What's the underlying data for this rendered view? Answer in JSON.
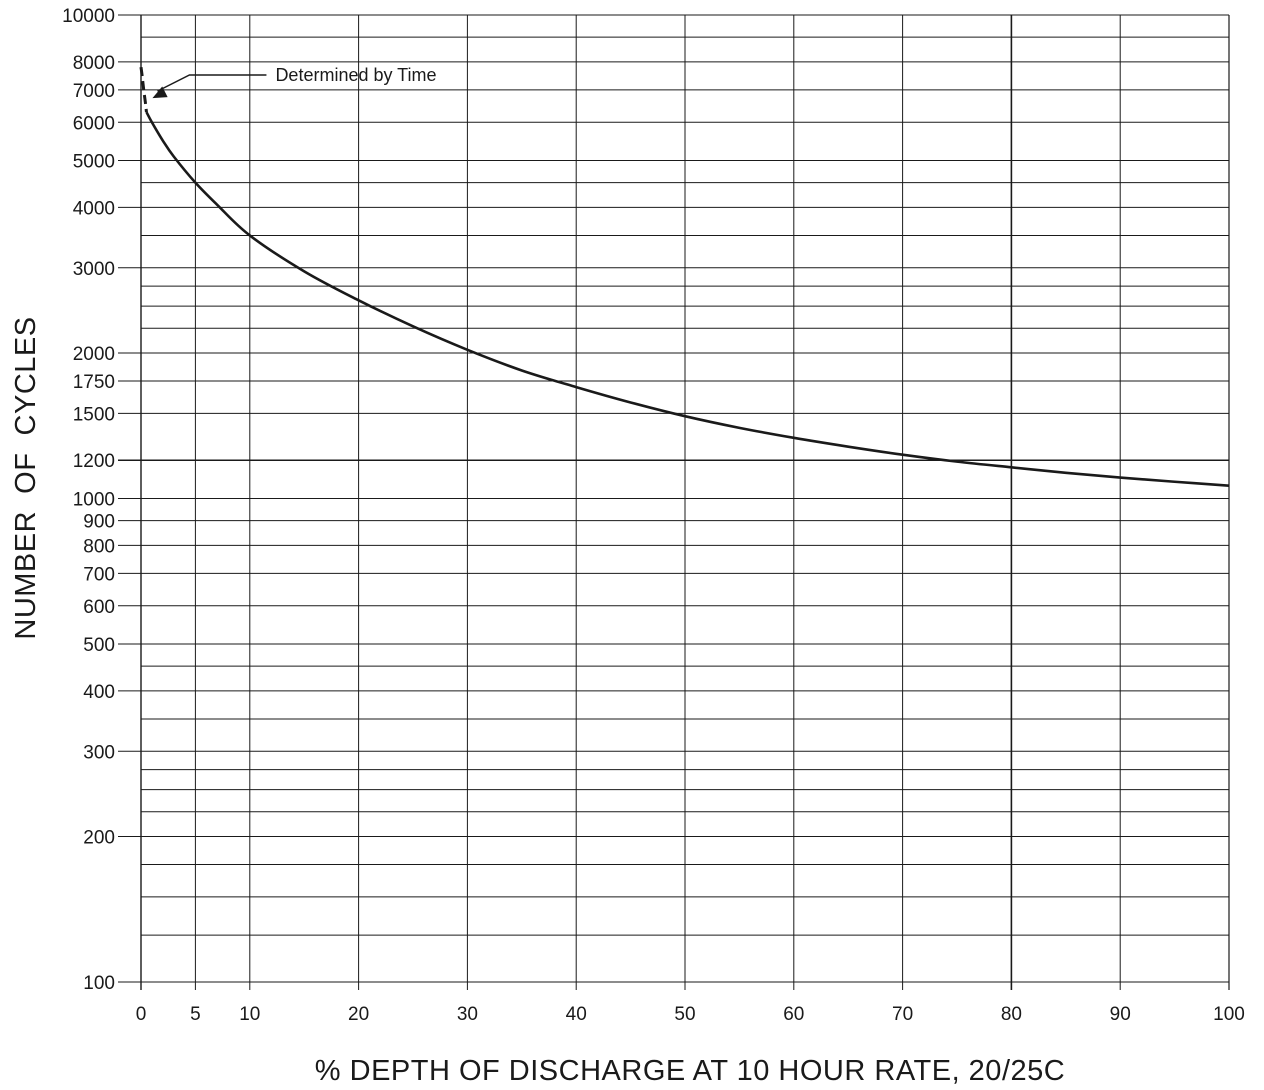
{
  "chart_data": {
    "type": "line",
    "title": "",
    "xlabel": "% DEPTH OF DISCHARGE AT 10 HOUR RATE, 20/25C",
    "ylabel": "NUMBER  OF  CYCLES",
    "xlim": [
      0,
      100
    ],
    "ylim": [
      100,
      10000
    ],
    "y_scale": "log",
    "grid": true,
    "x_ticks": [
      0,
      5,
      10,
      20,
      30,
      40,
      50,
      60,
      70,
      80,
      90,
      100
    ],
    "x_tick_labels": [
      "0",
      "5",
      "10",
      "20",
      "30",
      "40",
      "50",
      "60",
      "70",
      "80",
      "90",
      "100"
    ],
    "y_ticks": [
      100,
      200,
      300,
      400,
      500,
      600,
      700,
      800,
      900,
      1000,
      1200,
      1500,
      1750,
      2000,
      3000,
      4000,
      5000,
      6000,
      7000,
      8000,
      10000
    ],
    "y_tick_labels": [
      "100",
      "200",
      "300",
      "400",
      "500",
      "600",
      "700",
      "800",
      "900",
      "1000",
      "1200",
      "1500",
      "1750",
      "2000",
      "3000",
      "4000",
      "5000",
      "6000",
      "7000",
      "8000",
      "10000"
    ],
    "y_minor_gridlines": [
      125,
      150,
      175,
      225,
      250,
      275,
      350,
      450,
      2250,
      2500,
      2750,
      3500,
      4500,
      9000
    ],
    "series": [
      {
        "name": "",
        "style": "solid",
        "color": "#1a1a1a",
        "x": [
          0.5,
          1,
          2,
          3,
          5,
          7,
          10,
          15,
          20,
          25,
          30,
          35,
          40,
          45,
          50,
          55,
          60,
          65,
          70,
          75,
          80,
          85,
          90,
          95,
          100
        ],
        "y": [
          6300,
          6000,
          5500,
          5100,
          4500,
          4050,
          3500,
          2950,
          2570,
          2270,
          2030,
          1840,
          1700,
          1580,
          1480,
          1400,
          1335,
          1280,
          1232,
          1192,
          1160,
          1130,
          1105,
          1083,
          1063
        ]
      },
      {
        "name": "",
        "style": "dashed",
        "color": "#1a1a1a",
        "x": [
          0,
          0.1,
          0.25,
          0.4,
          0.5
        ],
        "y": [
          7800,
          7500,
          7000,
          6600,
          6300
        ]
      }
    ],
    "annotations": [
      {
        "text": "Determined by Time",
        "arrow_to": [
          0.5,
          6700
        ]
      }
    ]
  }
}
